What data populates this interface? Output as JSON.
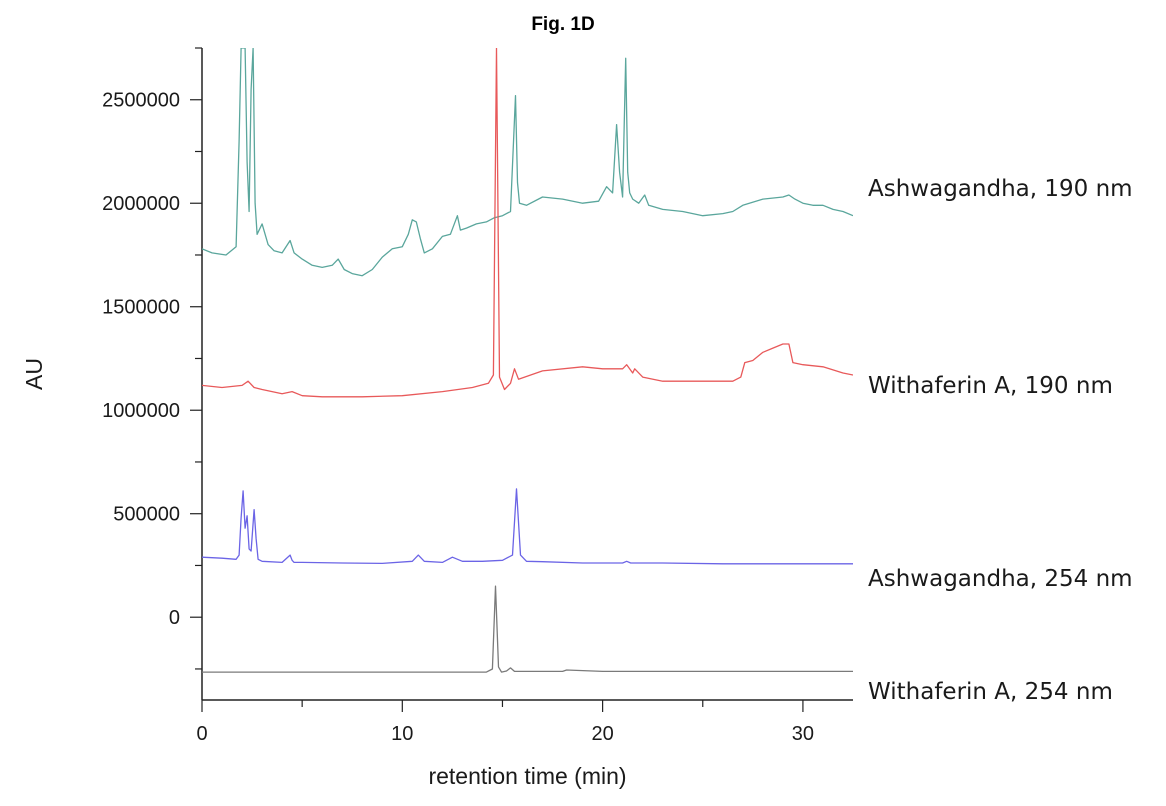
{
  "chart_data": {
    "type": "line",
    "title": "Fig. 1D",
    "xlabel": "retention time (min)",
    "ylabel": "AU",
    "xlim": [
      0,
      32.5
    ],
    "ylim": [
      -400000,
      2750000
    ],
    "x_ticks": [
      0,
      10,
      20,
      30
    ],
    "x_tick_labels": [
      "0",
      "10",
      "20",
      "30"
    ],
    "y_ticks": [
      0,
      500000,
      1000000,
      1500000,
      2000000,
      2500000
    ],
    "y_tick_labels": [
      "0",
      "500000",
      "1000000",
      "1500000",
      "2000000",
      "2500000"
    ],
    "grid": false,
    "legend": "labels at right end of each trace",
    "series": [
      {
        "name": "Ashwagandha, 190 nm",
        "color": "#5aa69c",
        "x": [
          0,
          0.5,
          1.2,
          1.7,
          1.85,
          1.95,
          2.05,
          2.15,
          2.25,
          2.35,
          2.45,
          2.55,
          2.65,
          2.75,
          3.0,
          3.3,
          3.6,
          4.0,
          4.4,
          4.5,
          4.6,
          5.0,
          5.5,
          6.0,
          6.5,
          6.8,
          7.1,
          7.5,
          8.0,
          8.5,
          9.0,
          9.5,
          10.0,
          10.3,
          10.5,
          10.7,
          10.9,
          11.1,
          11.5,
          12.0,
          12.4,
          12.75,
          12.9,
          13.2,
          13.7,
          14.2,
          14.6,
          15.0,
          15.4,
          15.65,
          15.75,
          15.85,
          16.2,
          17.0,
          18.0,
          19.0,
          19.8,
          20.2,
          20.5,
          20.7,
          20.85,
          21.0,
          21.15,
          21.25,
          21.35,
          21.5,
          21.8,
          22.1,
          22.3,
          23.0,
          24.0,
          25.0,
          26.0,
          26.5,
          27.0,
          28.0,
          29.0,
          29.3,
          29.6,
          30.0,
          30.5,
          31.0,
          31.5,
          32.0,
          32.5
        ],
        "y": [
          1780000,
          1760000,
          1750000,
          1790000,
          2300000,
          2750000,
          2750000,
          2750000,
          2200000,
          1960000,
          2550000,
          2750000,
          2000000,
          1850000,
          1900000,
          1800000,
          1770000,
          1760000,
          1820000,
          1790000,
          1760000,
          1730000,
          1700000,
          1690000,
          1700000,
          1730000,
          1680000,
          1660000,
          1650000,
          1680000,
          1740000,
          1780000,
          1790000,
          1850000,
          1920000,
          1910000,
          1830000,
          1760000,
          1780000,
          1840000,
          1850000,
          1940000,
          1870000,
          1880000,
          1900000,
          1910000,
          1930000,
          1940000,
          1960000,
          2520000,
          2100000,
          2000000,
          1990000,
          2030000,
          2020000,
          2000000,
          2010000,
          2080000,
          2050000,
          2380000,
          2150000,
          2030000,
          2700000,
          2150000,
          2050000,
          2020000,
          2000000,
          2040000,
          1990000,
          1970000,
          1960000,
          1940000,
          1950000,
          1960000,
          1990000,
          2020000,
          2030000,
          2040000,
          2020000,
          2000000,
          1990000,
          1990000,
          1970000,
          1960000,
          1940000
        ]
      },
      {
        "name": "Withaferin A, 190 nm",
        "color": "#e8595a",
        "x": [
          0,
          1,
          2,
          2.3,
          2.6,
          3.0,
          4.0,
          4.5,
          5.0,
          6.0,
          8.0,
          10.0,
          12.0,
          13.5,
          14.3,
          14.55,
          14.7,
          14.85,
          15.1,
          15.4,
          15.6,
          15.8,
          17.0,
          19.0,
          20.0,
          21.0,
          21.2,
          21.5,
          21.6,
          22.0,
          23.0,
          25.0,
          26.5,
          26.9,
          27.1,
          27.5,
          28.0,
          28.5,
          29.0,
          29.3,
          29.5,
          30.0,
          31.0,
          32.0,
          32.5
        ],
        "y": [
          1120000,
          1110000,
          1120000,
          1140000,
          1110000,
          1100000,
          1080000,
          1090000,
          1070000,
          1065000,
          1065000,
          1070000,
          1090000,
          1110000,
          1130000,
          1170000,
          2750000,
          1160000,
          1100000,
          1130000,
          1200000,
          1150000,
          1190000,
          1210000,
          1200000,
          1200000,
          1220000,
          1180000,
          1200000,
          1160000,
          1140000,
          1140000,
          1140000,
          1160000,
          1230000,
          1240000,
          1280000,
          1300000,
          1320000,
          1320000,
          1230000,
          1220000,
          1210000,
          1180000,
          1170000
        ]
      },
      {
        "name": "Ashwagandha, 254 nm",
        "color": "#6b64e6",
        "x": [
          0,
          1.0,
          1.7,
          1.85,
          1.95,
          2.05,
          2.15,
          2.25,
          2.35,
          2.45,
          2.6,
          2.7,
          2.8,
          3.0,
          4.0,
          4.4,
          4.5,
          4.6,
          5.0,
          7.0,
          9.0,
          10.5,
          10.8,
          11.1,
          12.0,
          12.5,
          13.0,
          14.0,
          15.0,
          15.5,
          15.7,
          15.9,
          16.2,
          17.0,
          19.0,
          21.0,
          21.2,
          21.4,
          23.0,
          26.0,
          29.0,
          32.0,
          32.5
        ],
        "y": [
          290000,
          285000,
          280000,
          300000,
          480000,
          610000,
          430000,
          490000,
          330000,
          320000,
          520000,
          380000,
          280000,
          270000,
          265000,
          300000,
          275000,
          265000,
          265000,
          262000,
          260000,
          270000,
          300000,
          270000,
          265000,
          290000,
          270000,
          270000,
          275000,
          300000,
          620000,
          300000,
          270000,
          268000,
          262000,
          262000,
          270000,
          262000,
          262000,
          258000,
          258000,
          258000,
          258000
        ]
      },
      {
        "name": "Withaferin A, 254 nm",
        "color": "#7a7a7a",
        "x": [
          0,
          5,
          10,
          14.2,
          14.5,
          14.65,
          14.8,
          14.95,
          15.2,
          15.4,
          15.6,
          17.0,
          18.0,
          18.2,
          20.0,
          25.0,
          30.0,
          32.5
        ],
        "y": [
          -265000,
          -265000,
          -265000,
          -265000,
          -250000,
          150000,
          -240000,
          -265000,
          -260000,
          -245000,
          -262000,
          -262000,
          -262000,
          -255000,
          -262000,
          -262000,
          -262000,
          -262000
        ]
      }
    ]
  }
}
